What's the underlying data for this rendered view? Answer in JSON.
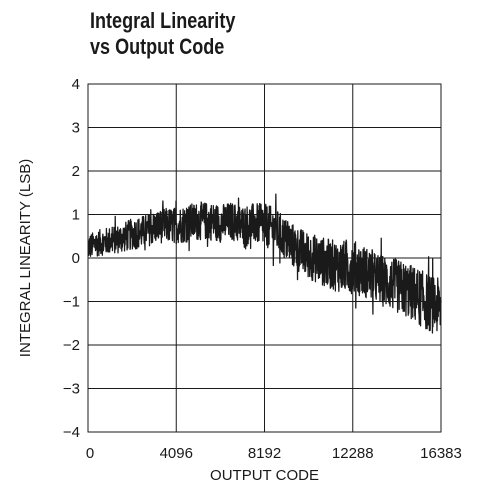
{
  "chart_data": {
    "type": "line",
    "title": [
      "Integral Linearity",
      "vs Output Code"
    ],
    "xlabel": "OUTPUT CODE",
    "ylabel": "INTEGRAL LINEARITY (LSB)",
    "xlim": [
      0,
      16383
    ],
    "ylim": [
      -4,
      4
    ],
    "xticks": [
      0,
      4096,
      8192,
      12288,
      16383
    ],
    "xtick_labels": [
      "0",
      "4096",
      "8192",
      "12288",
      "16383"
    ],
    "yticks": [
      -4,
      -3,
      -2,
      -1,
      0,
      1,
      2,
      3,
      4
    ],
    "ytick_labels": [
      "−4",
      "−3",
      "−2",
      "−1",
      "0",
      "1",
      "2",
      "3",
      "4"
    ],
    "grid": true,
    "series_color": "#1a1a1a",
    "series": [
      {
        "x": [
          0,
          512,
          1024,
          1536,
          2048,
          2560,
          3072,
          3584,
          4096,
          4608,
          5120,
          5632,
          6144,
          6656,
          7168,
          7680,
          8192,
          8704,
          9216,
          9728,
          10240,
          10752,
          11264,
          11776,
          12288,
          12800,
          13312,
          13824,
          14336,
          14848,
          15360,
          15872,
          16383
        ],
        "y": [
          0.25,
          0.35,
          0.4,
          0.45,
          0.55,
          0.6,
          0.7,
          0.75,
          0.75,
          0.8,
          0.85,
          0.85,
          0.8,
          0.85,
          0.75,
          0.8,
          0.75,
          0.65,
          0.4,
          0.2,
          0.05,
          -0.05,
          -0.15,
          -0.2,
          -0.2,
          -0.3,
          -0.45,
          -0.55,
          -0.65,
          -0.75,
          -0.9,
          -1.05,
          -1.15
        ],
        "noise_amplitude": [
          0.3,
          0.3,
          0.32,
          0.34,
          0.36,
          0.38,
          0.38,
          0.4,
          0.42,
          0.44,
          0.44,
          0.44,
          0.44,
          0.44,
          0.46,
          0.46,
          0.5,
          0.5,
          0.5,
          0.52,
          0.54,
          0.56,
          0.58,
          0.6,
          0.62,
          0.6,
          0.58,
          0.6,
          0.62,
          0.64,
          0.66,
          0.66,
          0.66
        ]
      }
    ]
  }
}
